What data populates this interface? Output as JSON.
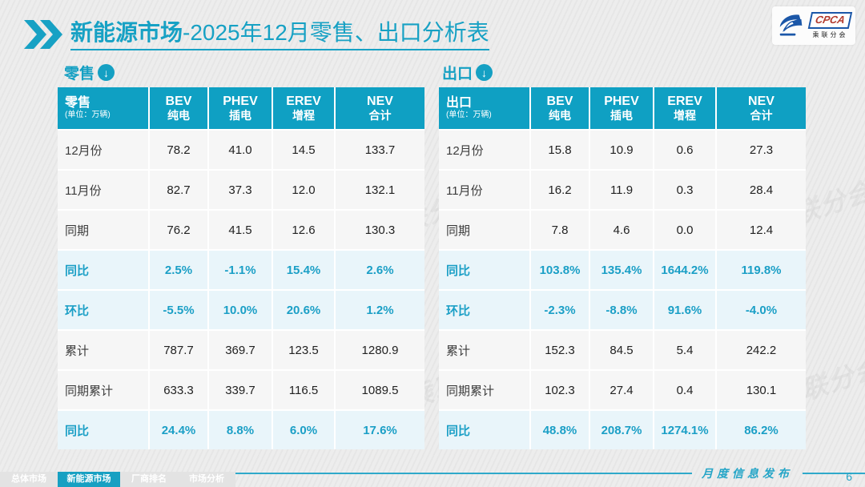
{
  "slide": {
    "title_bold": "新能源市场",
    "title_rest": "-2025年12月零售、出口分析表",
    "logo": {
      "abbr": "CPCA",
      "cn": "乘联分会"
    },
    "footer_caption": "月度信息发布",
    "page_number": "6",
    "nav_tabs": [
      "总体市场",
      "新能源市场",
      "厂商排名",
      "市场分析"
    ],
    "active_tab": "新能源市场",
    "watermark": "CPCA 乘联分会",
    "colors": {
      "teal_accent": "#17a1c4",
      "table_header": "#0fa0c3",
      "highlight_row_bg": "#e9f5fa",
      "highlight_text": "#1b9fc6",
      "logo_blue": "#1b57a8"
    }
  },
  "chart_data": [
    {
      "type": "table",
      "section_label": "零售",
      "corner_title": "零售",
      "corner_unit": "(单位：万辆)",
      "columns": [
        {
          "en": "BEV",
          "cn": "纯电"
        },
        {
          "en": "PHEV",
          "cn": "插电"
        },
        {
          "en": "EREV",
          "cn": "增程"
        },
        {
          "en": "NEV",
          "cn": "合计"
        }
      ],
      "rows": [
        {
          "label": "12月份",
          "values": [
            "78.2",
            "41.0",
            "14.5",
            "133.7"
          ],
          "highlight": false
        },
        {
          "label": "11月份",
          "values": [
            "82.7",
            "37.3",
            "12.0",
            "132.1"
          ],
          "highlight": false
        },
        {
          "label": "同期",
          "values": [
            "76.2",
            "41.5",
            "12.6",
            "130.3"
          ],
          "highlight": false
        },
        {
          "label": "同比",
          "values": [
            "2.5%",
            "-1.1%",
            "15.4%",
            "2.6%"
          ],
          "highlight": true
        },
        {
          "label": "环比",
          "values": [
            "-5.5%",
            "10.0%",
            "20.6%",
            "1.2%"
          ],
          "highlight": true
        },
        {
          "label": "累计",
          "values": [
            "787.7",
            "369.7",
            "123.5",
            "1280.9"
          ],
          "highlight": false
        },
        {
          "label": "同期累计",
          "values": [
            "633.3",
            "339.7",
            "116.5",
            "1089.5"
          ],
          "highlight": false
        },
        {
          "label": "同比",
          "values": [
            "24.4%",
            "8.8%",
            "6.0%",
            "17.6%"
          ],
          "highlight": true
        }
      ]
    },
    {
      "type": "table",
      "section_label": "出口",
      "corner_title": "出口",
      "corner_unit": "(单位：万辆)",
      "columns": [
        {
          "en": "BEV",
          "cn": "纯电"
        },
        {
          "en": "PHEV",
          "cn": "插电"
        },
        {
          "en": "EREV",
          "cn": "增程"
        },
        {
          "en": "NEV",
          "cn": "合计"
        }
      ],
      "rows": [
        {
          "label": "12月份",
          "values": [
            "15.8",
            "10.9",
            "0.6",
            "27.3"
          ],
          "highlight": false
        },
        {
          "label": "11月份",
          "values": [
            "16.2",
            "11.9",
            "0.3",
            "28.4"
          ],
          "highlight": false
        },
        {
          "label": "同期",
          "values": [
            "7.8",
            "4.6",
            "0.0",
            "12.4"
          ],
          "highlight": false
        },
        {
          "label": "同比",
          "values": [
            "103.8%",
            "135.4%",
            "1644.2%",
            "119.8%"
          ],
          "highlight": true
        },
        {
          "label": "环比",
          "values": [
            "-2.3%",
            "-8.8%",
            "91.6%",
            "-4.0%"
          ],
          "highlight": true
        },
        {
          "label": "累计",
          "values": [
            "152.3",
            "84.5",
            "5.4",
            "242.2"
          ],
          "highlight": false
        },
        {
          "label": "同期累计",
          "values": [
            "102.3",
            "27.4",
            "0.4",
            "130.1"
          ],
          "highlight": false
        },
        {
          "label": "同比",
          "values": [
            "48.8%",
            "208.7%",
            "1274.1%",
            "86.2%"
          ],
          "highlight": true
        }
      ]
    }
  ]
}
